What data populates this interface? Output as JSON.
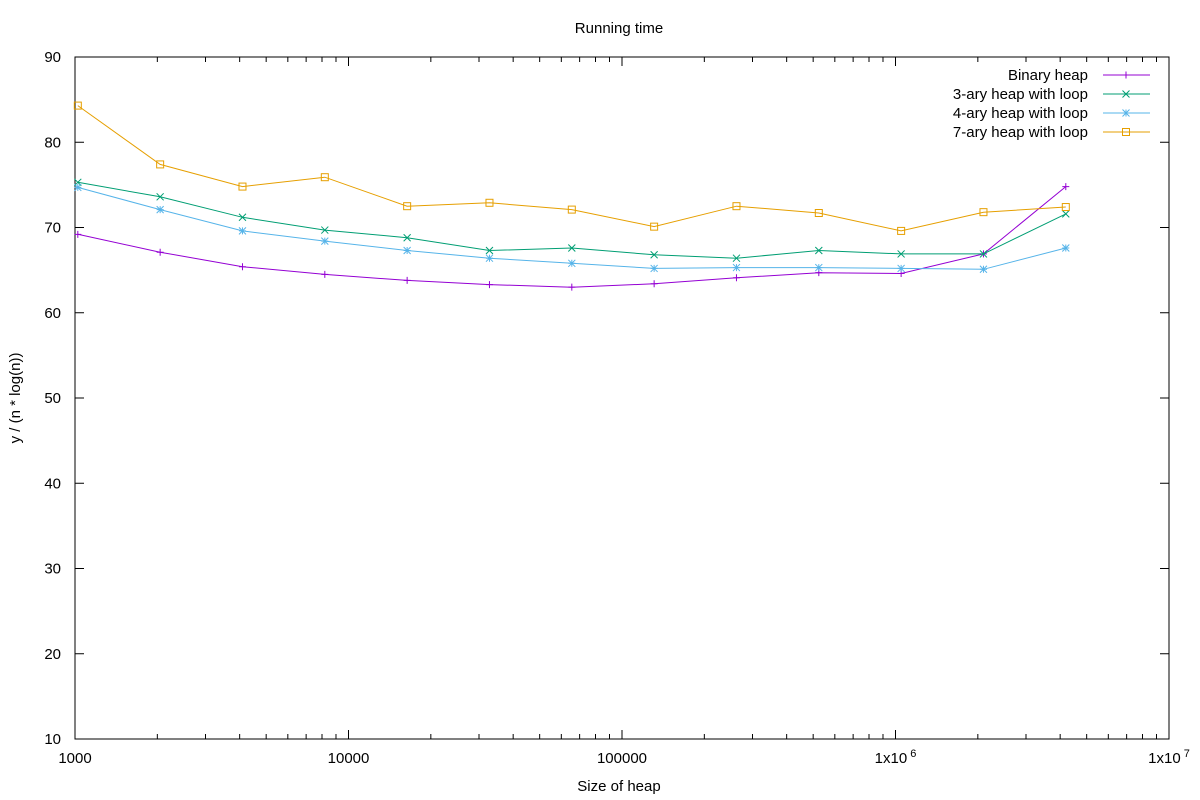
{
  "chart_data": {
    "type": "line",
    "title": "Running time",
    "xlabel": "Size of heap",
    "ylabel": "y / (n * log(n))",
    "x_scale": "log",
    "xlim": [
      1000,
      10000000
    ],
    "ylim": [
      10,
      90
    ],
    "grid": false,
    "legend_position": "top-right",
    "x_ticks": [
      {
        "value": 1000,
        "label": "1000"
      },
      {
        "value": 10000,
        "label": "10000"
      },
      {
        "value": 100000,
        "label": "100000"
      },
      {
        "value": 1000000,
        "label": "1x10",
        "sup": "6"
      },
      {
        "value": 10000000,
        "label": "1x10",
        "sup": "7"
      }
    ],
    "y_ticks": [
      10,
      20,
      30,
      40,
      50,
      60,
      70,
      80,
      90
    ],
    "x": [
      1024,
      2048,
      4096,
      8192,
      16384,
      32768,
      65536,
      131072,
      262144,
      524288,
      1048576,
      2097152,
      4194304
    ],
    "series": [
      {
        "name": "Binary heap",
        "color": "#9400d3",
        "marker": "plus",
        "values": [
          69.2,
          67.1,
          65.4,
          64.5,
          63.8,
          63.3,
          63.0,
          63.4,
          64.1,
          64.7,
          64.6,
          66.9,
          74.8
        ]
      },
      {
        "name": "3-ary heap with loop",
        "color": "#009e73",
        "marker": "cross",
        "values": [
          75.3,
          73.6,
          71.2,
          69.7,
          68.8,
          67.3,
          67.6,
          66.8,
          66.4,
          67.3,
          66.9,
          66.9,
          71.6
        ]
      },
      {
        "name": "4-ary heap with loop",
        "color": "#56b4e9",
        "marker": "star",
        "values": [
          74.7,
          72.1,
          69.6,
          68.4,
          67.3,
          66.4,
          65.8,
          65.2,
          65.3,
          65.3,
          65.2,
          65.1,
          67.6
        ]
      },
      {
        "name": "7-ary heap with loop",
        "color": "#e69f00",
        "marker": "square",
        "values": [
          84.3,
          77.4,
          74.8,
          75.9,
          72.5,
          72.9,
          72.1,
          70.1,
          72.5,
          71.7,
          69.6,
          71.8,
          72.4
        ]
      }
    ]
  }
}
